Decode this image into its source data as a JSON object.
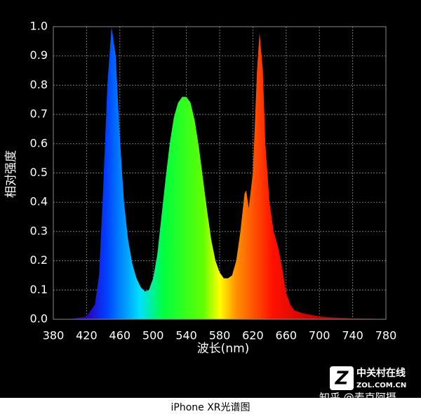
{
  "chart_data": {
    "type": "area",
    "x": [
      380,
      400,
      410,
      420,
      430,
      435,
      440,
      445,
      450,
      455,
      460,
      465,
      470,
      475,
      480,
      485,
      490,
      495,
      500,
      505,
      510,
      515,
      520,
      525,
      530,
      535,
      540,
      545,
      550,
      555,
      560,
      565,
      570,
      575,
      580,
      585,
      590,
      595,
      600,
      605,
      610,
      612,
      615,
      620,
      625,
      628,
      632,
      635,
      640,
      645,
      650,
      655,
      660,
      665,
      670,
      680,
      700,
      720,
      740,
      760,
      780
    ],
    "values": [
      0,
      0,
      0.005,
      0.01,
      0.05,
      0.15,
      0.45,
      0.8,
      1.0,
      0.9,
      0.62,
      0.4,
      0.27,
      0.19,
      0.14,
      0.11,
      0.095,
      0.1,
      0.14,
      0.22,
      0.35,
      0.48,
      0.6,
      0.69,
      0.74,
      0.76,
      0.76,
      0.74,
      0.68,
      0.59,
      0.48,
      0.37,
      0.27,
      0.2,
      0.16,
      0.14,
      0.14,
      0.15,
      0.2,
      0.3,
      0.43,
      0.44,
      0.38,
      0.5,
      0.85,
      0.98,
      0.85,
      0.6,
      0.4,
      0.3,
      0.25,
      0.18,
      0.09,
      0.05,
      0.03,
      0.02,
      0.01,
      0.005,
      0.003,
      0.002,
      0
    ],
    "xlim": [
      380,
      780
    ],
    "ylim": [
      0,
      1
    ],
    "xticks": [
      380,
      420,
      460,
      500,
      540,
      580,
      620,
      660,
      700,
      740,
      780
    ],
    "yticks": [
      {
        "value": 0,
        "label": "0.0"
      },
      0.1,
      0.2,
      0.3,
      0.4,
      0.5,
      0.6,
      0.7,
      0.8,
      0.9,
      {
        "value": 1,
        "label": "1.0"
      }
    ],
    "xlabel": "波长(nm)",
    "ylabel": "相对强度",
    "grid": true,
    "watermark_brand": "中关村在线",
    "watermark_site": "ZOL.COM.CN",
    "watermark_author": "知乎 @麦克阿摄",
    "caption": "iPhone XR光谱图"
  }
}
